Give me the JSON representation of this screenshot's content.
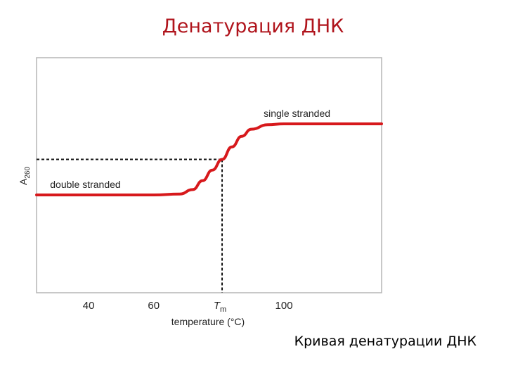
{
  "slide": {
    "title": "Денатурация ДНК",
    "caption": "Кривая денатурации ДНК"
  },
  "chart_data": {
    "type": "line",
    "title": "",
    "xlabel": "temperature (°C)",
    "ylabel": "A260",
    "ylabel_main": "A",
    "ylabel_sub": "260",
    "x_ticks": [
      40,
      60,
      100
    ],
    "tm_tick": {
      "main": "T",
      "sub": "m"
    },
    "xlim": [
      24,
      130
    ],
    "tm": 81,
    "y_low": 1.0,
    "y_high": 1.4,
    "grid": false,
    "line_color": "#d7191c",
    "series": [
      {
        "x": [
          24,
          40,
          60,
          68,
          72,
          75,
          78,
          81,
          84,
          87,
          90,
          95,
          100,
          130
        ],
        "y": [
          1.0,
          1.0,
          1.0,
          1.005,
          1.03,
          1.08,
          1.14,
          1.2,
          1.27,
          1.33,
          1.37,
          1.395,
          1.4,
          1.4
        ]
      }
    ],
    "annotations": [
      {
        "text": "double stranded",
        "x": 39,
        "y": 1.04
      },
      {
        "text": "single stranded",
        "x": 104,
        "y": 1.44
      }
    ]
  }
}
